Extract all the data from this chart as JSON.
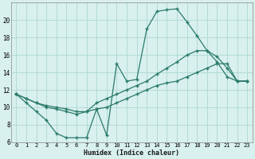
{
  "xlabel": "Humidex (Indice chaleur)",
  "x": [
    0,
    1,
    2,
    3,
    4,
    5,
    6,
    7,
    8,
    9,
    10,
    11,
    12,
    13,
    14,
    15,
    16,
    17,
    18,
    19,
    20,
    21,
    22,
    23
  ],
  "line1": [
    11.5,
    10.5,
    9.5,
    8.5,
    7.0,
    6.5,
    6.5,
    6.5,
    9.8,
    6.8,
    15.0,
    13.0,
    13.2,
    19.0,
    21.0,
    21.2,
    21.3,
    19.8,
    18.2,
    16.5,
    15.2,
    13.5,
    13.0,
    13.0
  ],
  "line2": [
    11.5,
    11.0,
    10.5,
    10.0,
    9.8,
    9.5,
    9.2,
    9.5,
    10.5,
    11.0,
    11.5,
    12.0,
    12.5,
    13.0,
    13.8,
    14.5,
    15.2,
    16.0,
    16.5,
    16.5,
    15.8,
    14.5,
    13.0,
    13.0
  ],
  "line3": [
    11.5,
    11.0,
    10.5,
    10.2,
    10.0,
    9.8,
    9.5,
    9.5,
    9.8,
    10.0,
    10.5,
    11.0,
    11.5,
    12.0,
    12.5,
    12.8,
    13.0,
    13.5,
    14.0,
    14.5,
    15.0,
    15.0,
    13.0,
    13.0
  ],
  "line_color": "#2a7a6a",
  "bg_color": "#d8f0ee",
  "grid_color": "#aed8d0",
  "ylim": [
    6,
    22
  ],
  "yticks": [
    6,
    8,
    10,
    12,
    14,
    16,
    18,
    20
  ],
  "xlim": [
    -0.5,
    23.5
  ],
  "xticks": [
    0,
    1,
    2,
    3,
    4,
    5,
    6,
    7,
    8,
    9,
    10,
    11,
    12,
    13,
    14,
    15,
    16,
    17,
    18,
    19,
    20,
    21,
    22,
    23
  ]
}
